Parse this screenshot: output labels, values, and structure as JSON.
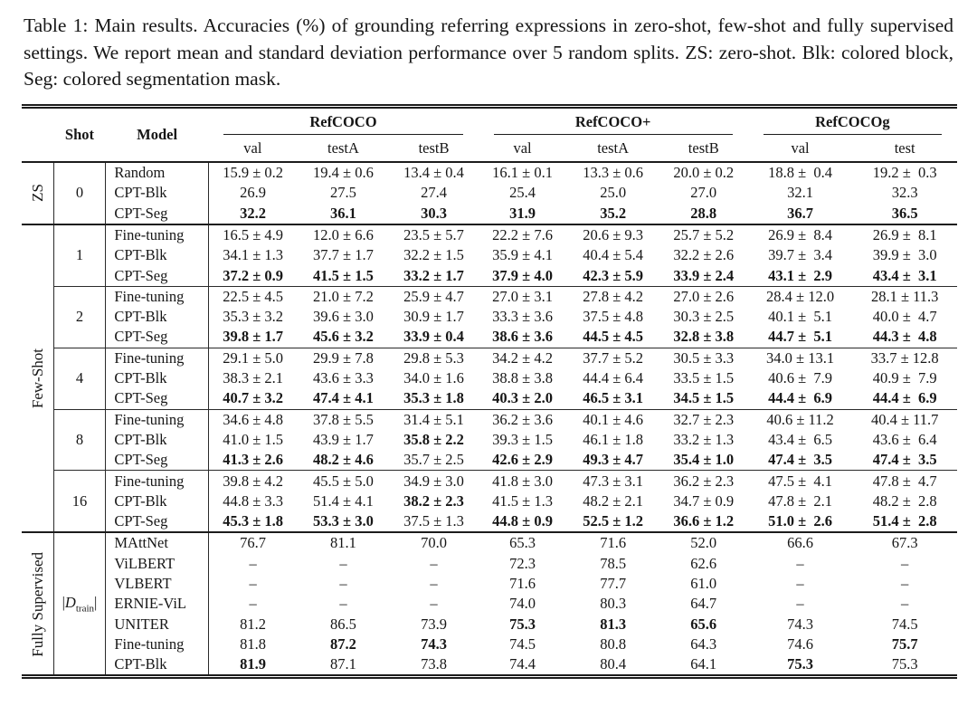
{
  "caption": "Table 1: Main results. Accuracies (%) of grounding referring expressions in zero-shot, few-shot and fully supervised settings. We report mean and standard deviation performance over 5 random splits. ZS: zero-shot. Blk: colored block, Seg: colored segmentation mask.",
  "header": {
    "shot": "Shot",
    "model": "Model",
    "groups": [
      {
        "name": "RefCOCO",
        "cols": [
          "val",
          "testA",
          "testB"
        ]
      },
      {
        "name": "RefCOCO+",
        "cols": [
          "val",
          "testA",
          "testB"
        ]
      },
      {
        "name": "RefCOCOg",
        "cols": [
          "val",
          "test"
        ]
      }
    ]
  },
  "sections": [
    {
      "label": "ZS",
      "blocks": [
        {
          "shot": "0",
          "rows": [
            {
              "model": "Random",
              "cells": [
                "15.9 ± 0.2",
                "19.4 ± 0.6",
                "13.4 ± 0.4",
                "16.1 ± 0.1",
                "13.3 ± 0.6",
                "20.0 ± 0.2",
                "18.8 ±  0.4",
                "19.2 ±  0.3"
              ]
            },
            {
              "model": "CPT-Blk",
              "cells": [
                "26.9",
                "27.5",
                "27.4",
                "25.4",
                "25.0",
                "27.0",
                "32.1",
                "32.3"
              ]
            },
            {
              "model": "CPT-Seg",
              "cells": [
                "32.2",
                "36.1",
                "30.3",
                "31.9",
                "35.2",
                "28.8",
                "36.7",
                "36.5"
              ],
              "bold": [
                1,
                1,
                1,
                1,
                1,
                1,
                1,
                1
              ]
            }
          ]
        }
      ]
    },
    {
      "label": "Few-Shot",
      "blocks": [
        {
          "shot": "1",
          "rows": [
            {
              "model": "Fine-tuning",
              "cells": [
                "16.5 ± 4.9",
                "12.0 ± 6.6",
                "23.5 ± 5.7",
                "22.2 ± 7.6",
                "20.6 ± 9.3",
                "25.7 ± 5.2",
                "26.9 ±  8.4",
                "26.9 ±  8.1"
              ]
            },
            {
              "model": "CPT-Blk",
              "cells": [
                "34.1 ± 1.3",
                "37.7 ± 1.7",
                "32.2 ± 1.5",
                "35.9 ± 4.1",
                "40.4 ± 5.4",
                "32.2 ± 2.6",
                "39.7 ±  3.4",
                "39.9 ±  3.0"
              ]
            },
            {
              "model": "CPT-Seg",
              "cells": [
                "37.2 ± 0.9",
                "41.5 ± 1.5",
                "33.2 ± 1.7",
                "37.9 ± 4.0",
                "42.3 ± 5.9",
                "33.9 ± 2.4",
                "43.1 ±  2.9",
                "43.4 ±  3.1"
              ],
              "bold": [
                1,
                1,
                1,
                1,
                1,
                1,
                1,
                1
              ]
            }
          ]
        },
        {
          "shot": "2",
          "rows": [
            {
              "model": "Fine-tuning",
              "cells": [
                "22.5 ± 4.5",
                "21.0 ± 7.2",
                "25.9 ± 4.7",
                "27.0 ± 3.1",
                "27.8 ± 4.2",
                "27.0 ± 2.6",
                "28.4 ± 12.0",
                "28.1 ± 11.3"
              ]
            },
            {
              "model": "CPT-Blk",
              "cells": [
                "35.3 ± 3.2",
                "39.6 ± 3.0",
                "30.9 ± 1.7",
                "33.3 ± 3.6",
                "37.5 ± 4.8",
                "30.3 ± 2.5",
                "40.1 ±  5.1",
                "40.0 ±  4.7"
              ]
            },
            {
              "model": "CPT-Seg",
              "cells": [
                "39.8 ± 1.7",
                "45.6 ± 3.2",
                "33.9 ± 0.4",
                "38.6 ± 3.6",
                "44.5 ± 4.5",
                "32.8 ± 3.8",
                "44.7 ±  5.1",
                "44.3 ±  4.8"
              ],
              "bold": [
                1,
                1,
                1,
                1,
                1,
                1,
                1,
                1
              ]
            }
          ]
        },
        {
          "shot": "4",
          "rows": [
            {
              "model": "Fine-tuning",
              "cells": [
                "29.1 ± 5.0",
                "29.9 ± 7.8",
                "29.8 ± 5.3",
                "34.2 ± 4.2",
                "37.7 ± 5.2",
                "30.5 ± 3.3",
                "34.0 ± 13.1",
                "33.7 ± 12.8"
              ]
            },
            {
              "model": "CPT-Blk",
              "cells": [
                "38.3 ± 2.1",
                "43.6 ± 3.3",
                "34.0 ± 1.6",
                "38.8 ± 3.8",
                "44.4 ± 6.4",
                "33.5 ± 1.5",
                "40.6 ±  7.9",
                "40.9 ±  7.9"
              ]
            },
            {
              "model": "CPT-Seg",
              "cells": [
                "40.7 ± 3.2",
                "47.4 ± 4.1",
                "35.3 ± 1.8",
                "40.3 ± 2.0",
                "46.5 ± 3.1",
                "34.5 ± 1.5",
                "44.4 ±  6.9",
                "44.4 ±  6.9"
              ],
              "bold": [
                1,
                1,
                1,
                1,
                1,
                1,
                1,
                1
              ]
            }
          ]
        },
        {
          "shot": "8",
          "rows": [
            {
              "model": "Fine-tuning",
              "cells": [
                "34.6 ± 4.8",
                "37.8 ± 5.5",
                "31.4 ± 5.1",
                "36.2 ± 3.6",
                "40.1 ± 4.6",
                "32.7 ± 2.3",
                "40.6 ± 11.2",
                "40.4 ± 11.7"
              ]
            },
            {
              "model": "CPT-Blk",
              "cells": [
                "41.0 ± 1.5",
                "43.9 ± 1.7",
                "35.8 ± 2.2",
                "39.3 ± 1.5",
                "46.1 ± 1.8",
                "33.2 ± 1.3",
                "43.4 ±  6.5",
                "43.6 ±  6.4"
              ],
              "bold": [
                0,
                0,
                1,
                0,
                0,
                0,
                0,
                0
              ]
            },
            {
              "model": "CPT-Seg",
              "cells": [
                "41.3 ± 2.6",
                "48.2 ± 4.6",
                "35.7 ± 2.5",
                "42.6 ± 2.9",
                "49.3 ± 4.7",
                "35.4 ± 1.0",
                "47.4 ±  3.5",
                "47.4 ±  3.5"
              ],
              "bold": [
                1,
                1,
                0,
                1,
                1,
                1,
                1,
                1
              ]
            }
          ]
        },
        {
          "shot": "16",
          "rows": [
            {
              "model": "Fine-tuning",
              "cells": [
                "39.8 ± 4.2",
                "45.5 ± 5.0",
                "34.9 ± 3.0",
                "41.8 ± 3.0",
                "47.3 ± 3.1",
                "36.2 ± 2.3",
                "47.5 ±  4.1",
                "47.8 ±  4.7"
              ]
            },
            {
              "model": "CPT-Blk",
              "cells": [
                "44.8 ± 3.3",
                "51.4 ± 4.1",
                "38.2 ± 2.3",
                "41.5 ± 1.3",
                "48.2 ± 2.1",
                "34.7 ± 0.9",
                "47.8 ±  2.1",
                "48.2 ±  2.8"
              ],
              "bold": [
                0,
                0,
                1,
                0,
                0,
                0,
                0,
                0
              ]
            },
            {
              "model": "CPT-Seg",
              "cells": [
                "45.3 ± 1.8",
                "53.3 ± 3.0",
                "37.5 ± 1.3",
                "44.8 ± 0.9",
                "52.5 ± 1.2",
                "36.6 ± 1.2",
                "51.0 ±  2.6",
                "51.4 ±  2.8"
              ],
              "bold": [
                1,
                1,
                0,
                1,
                1,
                1,
                1,
                1
              ]
            }
          ]
        }
      ]
    },
    {
      "label": "Fully Supervised",
      "blocks": [
        {
          "shot": {
            "pre": "|",
            "d": "D",
            "sub": "train",
            "post": "|"
          },
          "rows": [
            {
              "model": "MAttNet",
              "cells": [
                "76.7",
                "81.1",
                "70.0",
                "65.3",
                "71.6",
                "52.0",
                "66.6",
                "67.3"
              ]
            },
            {
              "model": "ViLBERT",
              "cells": [
                "–",
                "–",
                "–",
                "72.3",
                "78.5",
                "62.6",
                "–",
                "–"
              ]
            },
            {
              "model": "VLBERT",
              "cells": [
                "–",
                "–",
                "–",
                "71.6",
                "77.7",
                "61.0",
                "–",
                "–"
              ]
            },
            {
              "model": "ERNIE-ViL",
              "cells": [
                "–",
                "–",
                "–",
                "74.0",
                "80.3",
                "64.7",
                "–",
                "–"
              ]
            },
            {
              "model": "UNITER",
              "cells": [
                "81.2",
                "86.5",
                "73.9",
                "75.3",
                "81.3",
                "65.6",
                "74.3",
                "74.5"
              ],
              "bold": [
                0,
                0,
                0,
                1,
                1,
                1,
                0,
                0
              ]
            },
            {
              "model": "Fine-tuning",
              "cells": [
                "81.8",
                "87.2",
                "74.3",
                "74.5",
                "80.8",
                "64.3",
                "74.6",
                "75.7"
              ],
              "bold": [
                0,
                1,
                1,
                0,
                0,
                0,
                0,
                1
              ]
            },
            {
              "model": "CPT-Blk",
              "cells": [
                "81.9",
                "87.1",
                "73.8",
                "74.4",
                "80.4",
                "64.1",
                "75.3",
                "75.3"
              ],
              "bold": [
                1,
                0,
                0,
                0,
                0,
                0,
                1,
                0
              ]
            }
          ]
        }
      ]
    }
  ]
}
